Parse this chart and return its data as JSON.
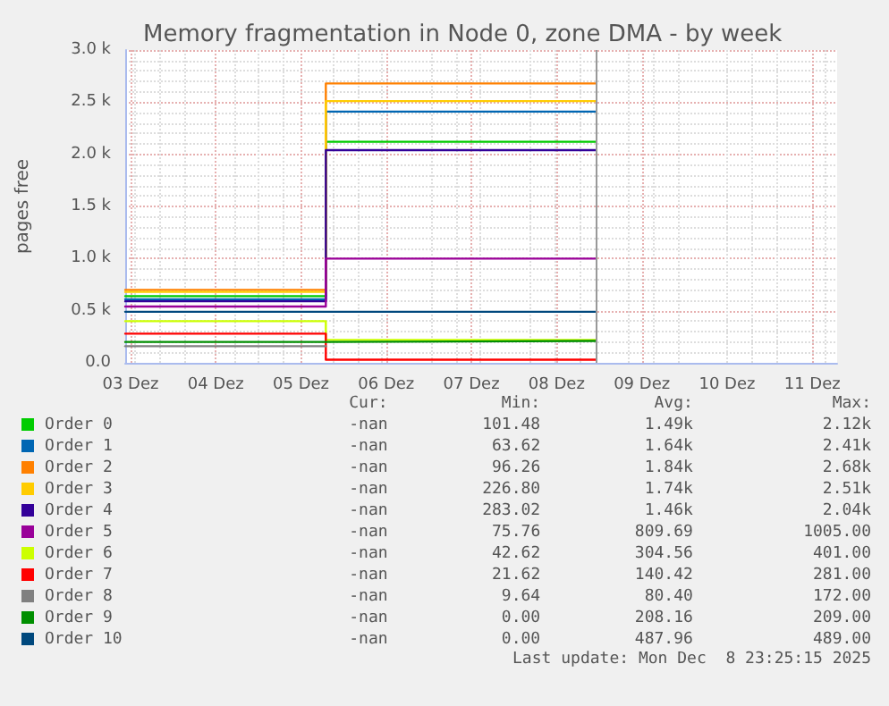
{
  "chart_data": {
    "type": "step",
    "title": "Memory fragmentation in Node 0, zone DMA - by week",
    "ylabel": "pages free",
    "xlim": [
      "2025-12-02T22:30",
      "2025-12-11T07:00"
    ],
    "xticks": [
      {
        "value": "2025-12-03T00:00",
        "label": "03 Dez"
      },
      {
        "value": "2025-12-04T00:00",
        "label": "04 Dez"
      },
      {
        "value": "2025-12-05T00:00",
        "label": "05 Dez"
      },
      {
        "value": "2025-12-06T00:00",
        "label": "06 Dez"
      },
      {
        "value": "2025-12-07T00:00",
        "label": "07 Dez"
      },
      {
        "value": "2025-12-08T00:00",
        "label": "08 Dez"
      },
      {
        "value": "2025-12-09T00:00",
        "label": "09 Dez"
      },
      {
        "value": "2025-12-10T00:00",
        "label": "10 Dez"
      },
      {
        "value": "2025-12-11T00:00",
        "label": "11 Dez"
      }
    ],
    "ylim": [
      0,
      3000
    ],
    "yticks": [
      {
        "value": 0,
        "label": "0.0"
      },
      {
        "value": 500,
        "label": "0.5 k"
      },
      {
        "value": 1000,
        "label": "1.0 k"
      },
      {
        "value": 1500,
        "label": "1.5 k"
      },
      {
        "value": 2000,
        "label": "2.0 k"
      },
      {
        "value": 2500,
        "label": "2.5 k"
      },
      {
        "value": 3000,
        "label": "3.0 k"
      }
    ],
    "x": [
      "2025-12-02T22:30",
      "2025-12-05T07:00",
      "2025-12-08T11:00"
    ],
    "series": [
      {
        "name": "Order 0",
        "color": "#00cc00",
        "values": [
          640,
          2120,
          2120
        ]
      },
      {
        "name": "Order 1",
        "color": "#0066b3",
        "values": [
          610,
          2410,
          2410
        ]
      },
      {
        "name": "Order 2",
        "color": "#ff8000",
        "values": [
          700,
          2680,
          2680
        ]
      },
      {
        "name": "Order 3",
        "color": "#ffcc00",
        "values": [
          680,
          2510,
          2510
        ]
      },
      {
        "name": "Order 4",
        "color": "#330099",
        "values": [
          590,
          2040,
          2040
        ]
      },
      {
        "name": "Order 5",
        "color": "#990099",
        "values": [
          540,
          1000,
          1000
        ]
      },
      {
        "name": "Order 6",
        "color": "#ccff00",
        "values": [
          400,
          220,
          220
        ]
      },
      {
        "name": "Order 7",
        "color": "#ff0000",
        "values": [
          280,
          30,
          30
        ]
      },
      {
        "name": "Order 8",
        "color": "#808080",
        "x": [
          "2025-12-02T22:30",
          "2025-12-05T07:00"
        ],
        "values": [
          160,
          160
        ]
      },
      {
        "name": "Order 9",
        "color": "#008f00",
        "values": [
          200,
          210,
          210
        ]
      },
      {
        "name": "Order 10",
        "color": "#00487d",
        "values": [
          490,
          490,
          490
        ]
      }
    ],
    "ref_lines": [
      {
        "axis": "x",
        "value": "2025-12-08T11:00",
        "color": "#999999"
      }
    ],
    "grid": true,
    "legend": "bottom",
    "line_style": "solid",
    "marker": "none",
    "annotations": [
      "Cur:",
      "Min:",
      "Avg:",
      "Max:",
      "-nan",
      "101.48",
      "1.49k",
      "2.12k",
      "-nan",
      "63.62",
      "1.64k",
      "2.41k",
      "-nan",
      "96.26",
      "1.84k",
      "2.68k",
      "-nan",
      "226.80",
      "1.74k",
      "2.51k",
      "-nan",
      "283.02",
      "1.46k",
      "2.04k",
      "-nan",
      "75.76",
      "809.69",
      "1005.00",
      "-nan",
      "42.62",
      "304.56",
      "401.00",
      "-nan",
      "21.62",
      "140.42",
      "281.00",
      "-nan",
      "9.64",
      "80.40",
      "172.00",
      "-nan",
      "0.00",
      "208.16",
      "209.00",
      "-nan",
      "0.00",
      "487.96",
      "489.00",
      "Last update: Mon Dec  8 23:25:15 2025"
    ]
  }
}
